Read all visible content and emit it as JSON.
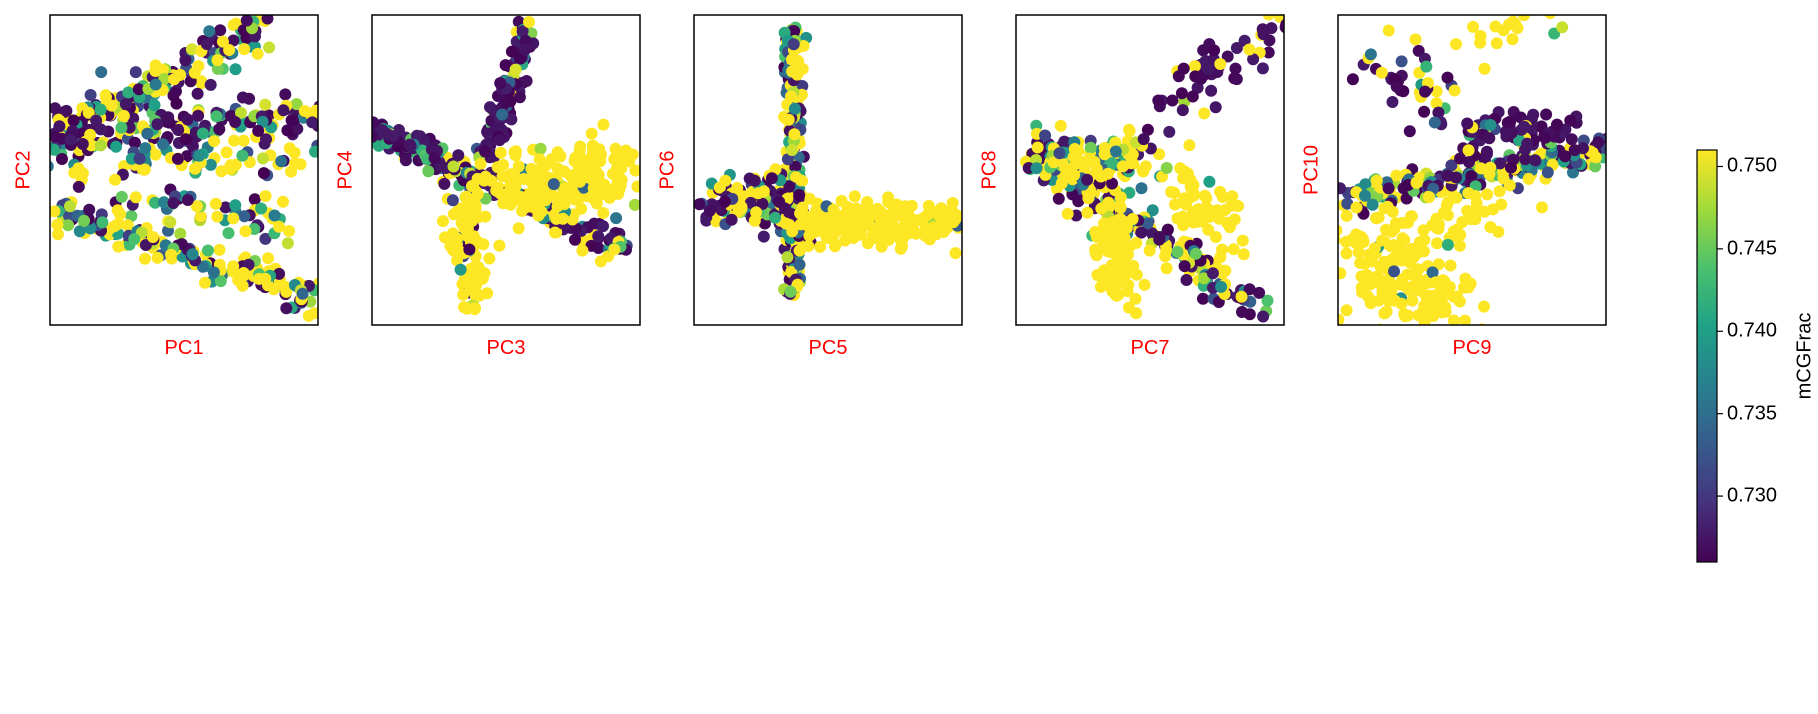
{
  "chart_data": {
    "type": "scatter",
    "colormap": "viridis",
    "grid": false,
    "xticks": "none",
    "yticks": "none",
    "panels": [
      {
        "xlabel": "PC1",
        "ylabel": "PC2"
      },
      {
        "xlabel": "PC3",
        "ylabel": "PC4"
      },
      {
        "xlabel": "PC5",
        "ylabel": "PC6"
      },
      {
        "xlabel": "PC7",
        "ylabel": "PC8"
      },
      {
        "xlabel": "PC9",
        "ylabel": "PC10"
      }
    ],
    "colorbar": {
      "label": "mCGFrac",
      "range": [
        0.726,
        0.751
      ],
      "ticks": [
        "0.730",
        "0.735",
        "0.740",
        "0.745",
        "0.750"
      ],
      "tick_values": [
        0.73,
        0.735,
        0.74,
        0.745,
        0.75
      ],
      "colors": [
        "#440154",
        "#46327e",
        "#365c8d",
        "#277f8e",
        "#1fa187",
        "#4ac16d",
        "#a0da39",
        "#fde725"
      ]
    }
  }
}
